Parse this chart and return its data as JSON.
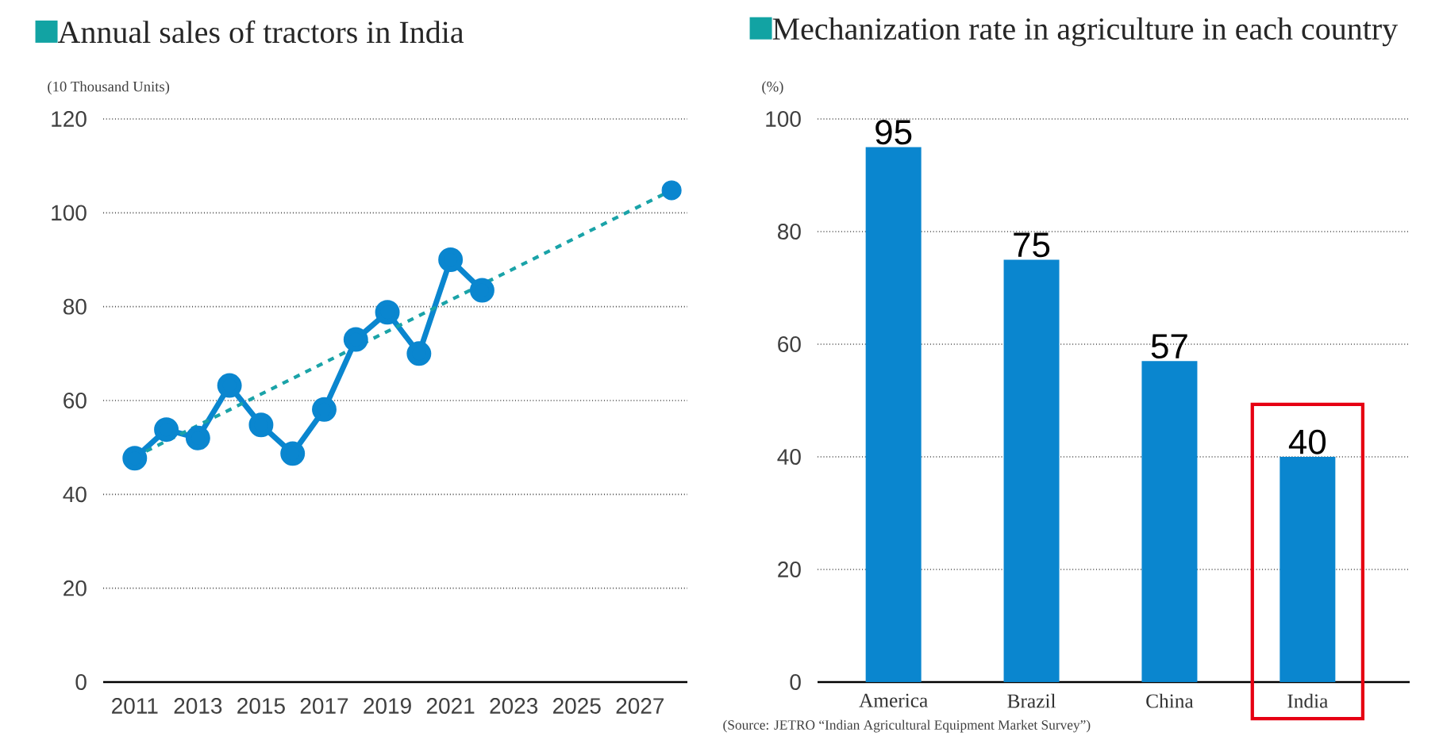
{
  "chart_data": [
    {
      "type": "line",
      "title": "Annual sales of tractors in India",
      "ylabel": "(10 Thousand Units)",
      "xlim": [
        2010,
        2028.5
      ],
      "xticks": [
        2011,
        2013,
        2015,
        2017,
        2019,
        2021,
        2023,
        2025,
        2027
      ],
      "ylim": [
        0,
        120
      ],
      "yticks": [
        0,
        20,
        40,
        60,
        80,
        100,
        120
      ],
      "grid": "y",
      "series": [
        {
          "color": "#0a86cf",
          "x": [
            2011,
            2012,
            2013,
            2014,
            2015,
            2016,
            2017,
            2018,
            2019,
            2020,
            2021,
            2022
          ],
          "values": [
            47.7,
            53.8,
            52,
            63.2,
            54.8,
            48.7,
            58.1,
            73,
            78.8,
            70,
            90,
            83.5
          ],
          "marker": "circle",
          "line_style": "solid"
        },
        {
          "type": "scatter",
          "color": "#0a86cf",
          "x": [
            2028
          ],
          "values": [
            104.8
          ],
          "marker": "circle"
        },
        {
          "type": "line",
          "color": "#1aa3a8",
          "x": [
            2011,
            2028
          ],
          "values": [
            48,
            104.8
          ],
          "marker": "none",
          "line_style": "dashed"
        }
      ]
    },
    {
      "type": "bar",
      "title": "Mechanization rate in agriculture in each country",
      "ylabel": "(%)",
      "categories": [
        "America",
        "Brazil",
        "China",
        "India"
      ],
      "values": [
        95,
        75,
        57,
        40
      ],
      "color": "#0a86cf",
      "ylim": [
        0,
        100
      ],
      "yticks": [
        0,
        20,
        40,
        60,
        80,
        100
      ],
      "grid": "y",
      "data_labels": true,
      "annotations": [
        "(Source: JETRO “Indian Agricultural Equipment Market Survey”)"
      ]
    }
  ]
}
